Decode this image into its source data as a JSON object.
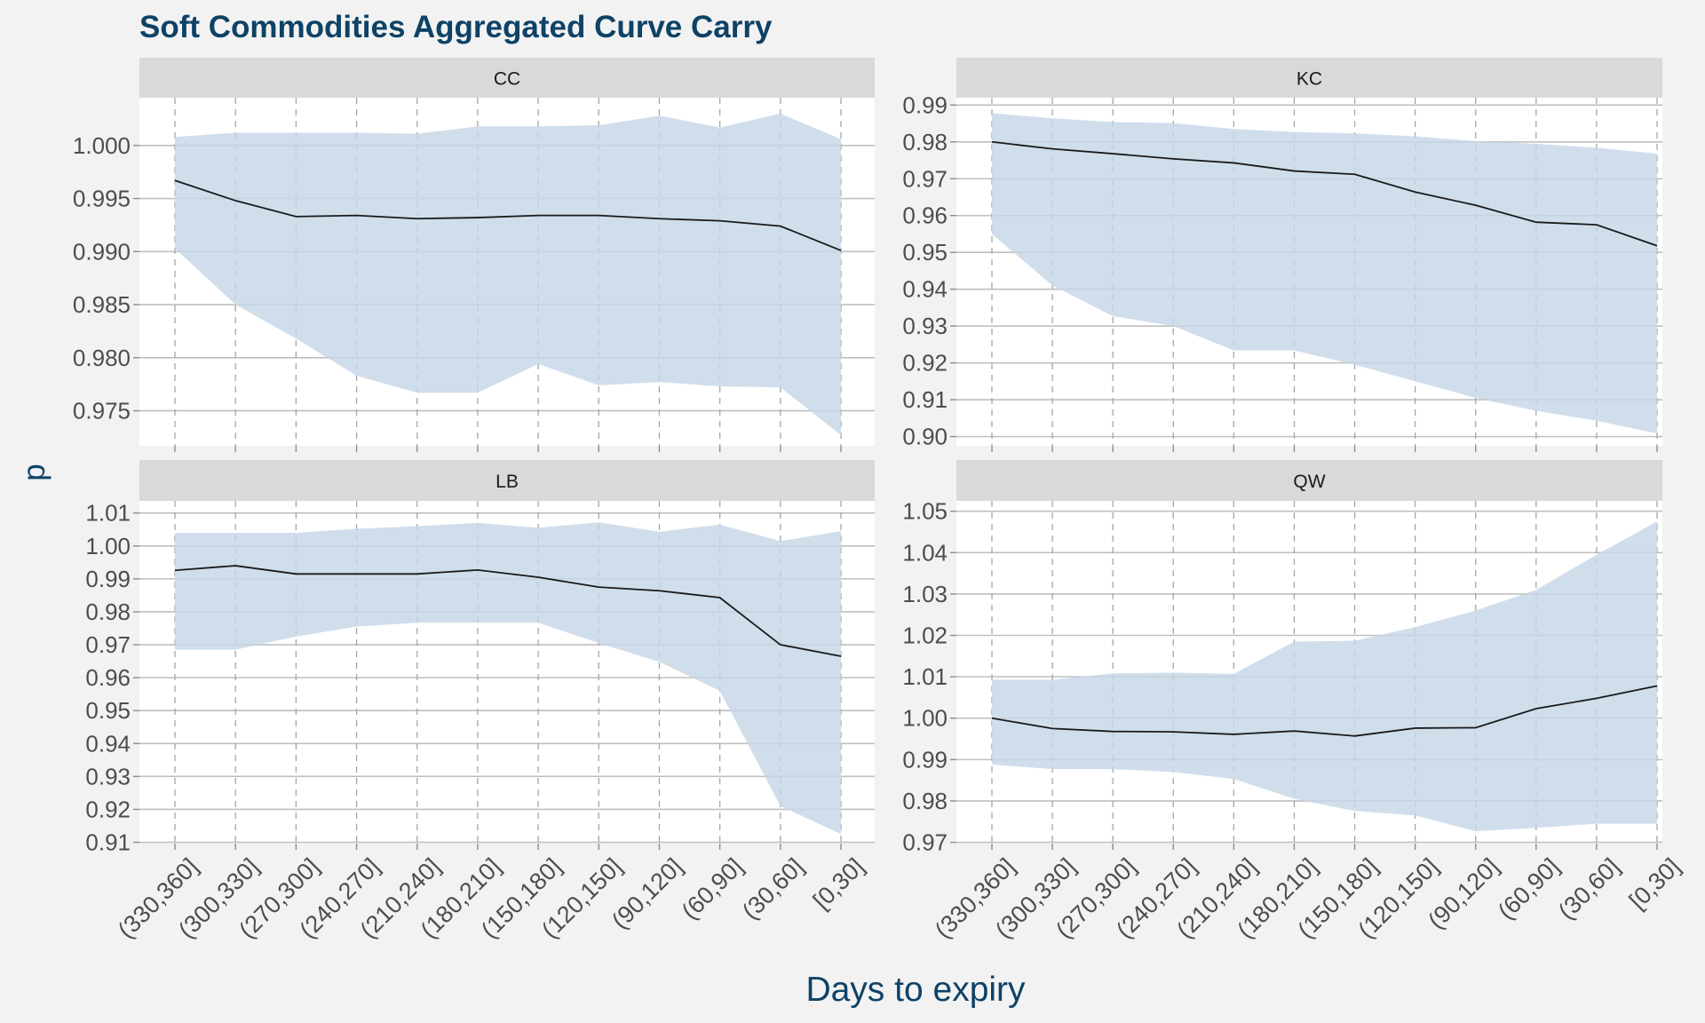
{
  "title": "Soft Commodities Aggregated Curve Carry",
  "ylabel": "p",
  "xlabel": "Days to expiry",
  "colors": {
    "background": "#f2f2f2",
    "panel": "#ffffff",
    "strip": "#d9d9d9",
    "ribbon": "#c6d7e8",
    "line": "#1a1a1a",
    "grid_major": "#bfbfbf",
    "grid_dashed": "#a6a6a6",
    "title": "#0e4266",
    "axis_text": "#4d4d4d"
  },
  "chart_data": [
    {
      "type": "line",
      "panel": "CC",
      "categories": [
        "(330,360]",
        "(300,330]",
        "(270,300]",
        "(240,270]",
        "(210,240]",
        "(180,210]",
        "(150,180]",
        "(120,150]",
        "(90,120]",
        "(60,90]",
        "(30,60]",
        "[0,30]"
      ],
      "y": [
        0.9967,
        0.9948,
        0.9933,
        0.9934,
        0.9931,
        0.9932,
        0.9934,
        0.9934,
        0.9931,
        0.9929,
        0.9924,
        0.9901
      ],
      "upper": [
        1.0008,
        1.0012,
        1.0012,
        1.0012,
        1.0011,
        1.0018,
        1.0018,
        1.0019,
        1.0028,
        1.0017,
        1.003,
        1.0006
      ],
      "lower": [
        0.9903,
        0.985,
        0.9818,
        0.9783,
        0.9767,
        0.9767,
        0.9794,
        0.9774,
        0.9777,
        0.9773,
        0.9772,
        0.9727
      ],
      "ylim": [
        0.9717,
        1.0045
      ],
      "yticks": [
        "0.975",
        "0.980",
        "0.985",
        "0.990",
        "0.995",
        "1.000"
      ]
    },
    {
      "type": "line",
      "panel": "KC",
      "categories": [
        "(330,360]",
        "(300,330]",
        "(270,300]",
        "(240,270]",
        "(210,240]",
        "(180,210]",
        "(150,180]",
        "(120,150]",
        "(90,120]",
        "(60,90]",
        "(30,60]",
        "[0,30]"
      ],
      "y": [
        0.98,
        0.9781,
        0.9768,
        0.9754,
        0.9743,
        0.9721,
        0.9712,
        0.9664,
        0.9628,
        0.9582,
        0.9575,
        0.9518
      ],
      "upper": [
        0.9878,
        0.9864,
        0.9854,
        0.9851,
        0.9835,
        0.9827,
        0.9823,
        0.9815,
        0.9802,
        0.9795,
        0.9784,
        0.9768
      ],
      "lower": [
        0.955,
        0.941,
        0.9327,
        0.93,
        0.9234,
        0.9234,
        0.9195,
        0.915,
        0.9105,
        0.907,
        0.9043,
        0.9008
      ],
      "ylim": [
        0.8975,
        0.992
      ],
      "yticks": [
        "0.90",
        "0.91",
        "0.92",
        "0.93",
        "0.94",
        "0.95",
        "0.96",
        "0.97",
        "0.98",
        "0.99"
      ]
    },
    {
      "type": "line",
      "panel": "LB",
      "categories": [
        "(330,360]",
        "(300,330]",
        "(270,300]",
        "(240,270]",
        "(210,240]",
        "(180,210]",
        "(150,180]",
        "(120,150]",
        "(90,120]",
        "(60,90]",
        "(30,60]",
        "[0,30]"
      ],
      "y": [
        0.9926,
        0.994,
        0.9915,
        0.9915,
        0.9915,
        0.9927,
        0.9905,
        0.9875,
        0.9864,
        0.9843,
        0.97,
        0.9665
      ],
      "upper": [
        1.004,
        1.004,
        1.004,
        1.0052,
        1.006,
        1.007,
        1.0055,
        1.0072,
        1.0043,
        1.0065,
        1.0015,
        1.0045
      ],
      "lower": [
        0.9685,
        0.9685,
        0.9725,
        0.9755,
        0.9767,
        0.9767,
        0.9767,
        0.9705,
        0.9648,
        0.956,
        0.921,
        0.9125
      ],
      "ylim": [
        0.9096,
        1.0137
      ],
      "yticks": [
        "0.91",
        "0.92",
        "0.93",
        "0.94",
        "0.95",
        "0.96",
        "0.97",
        "0.98",
        "0.99",
        "1.00",
        "1.01"
      ]
    },
    {
      "type": "line",
      "panel": "QW",
      "categories": [
        "(330,360]",
        "(300,330]",
        "(270,300]",
        "(240,270]",
        "(210,240]",
        "(180,210]",
        "(150,180]",
        "(120,150]",
        "(90,120]",
        "(60,90]",
        "(30,60]",
        "[0,30]"
      ],
      "y": [
        1.0,
        0.9975,
        0.9968,
        0.9967,
        0.9961,
        0.9969,
        0.9957,
        0.9976,
        0.9977,
        1.0023,
        1.0048,
        1.0078
      ],
      "upper": [
        1.0093,
        1.0093,
        1.0108,
        1.011,
        1.0107,
        1.0185,
        1.0187,
        1.022,
        1.026,
        1.031,
        1.0395,
        1.0475
      ],
      "lower": [
        0.9888,
        0.9877,
        0.9877,
        0.987,
        0.9853,
        0.9805,
        0.9776,
        0.9765,
        0.9727,
        0.9735,
        0.9745,
        0.9745
      ],
      "ylim": [
        0.9697,
        1.0525
      ],
      "yticks": [
        "0.97",
        "0.98",
        "0.99",
        "1.00",
        "1.01",
        "1.02",
        "1.03",
        "1.04",
        "1.05"
      ]
    }
  ]
}
